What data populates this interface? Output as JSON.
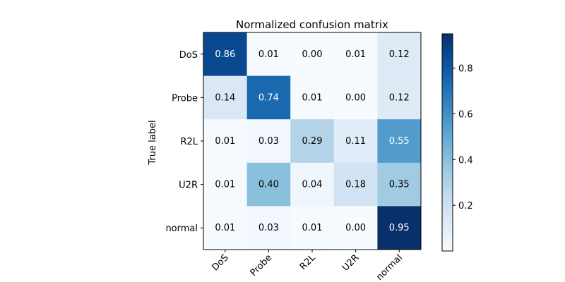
{
  "chart_data": {
    "type": "heatmap",
    "title": "Normalized confusion matrix",
    "ylabel": "True label",
    "xlabel": "",
    "row_labels": [
      "DoS",
      "Probe",
      "R2L",
      "U2R",
      "normal"
    ],
    "col_labels": [
      "DoS",
      "Probe",
      "R2L",
      "U2R",
      "normal"
    ],
    "values": [
      [
        0.86,
        0.01,
        0.0,
        0.01,
        0.12
      ],
      [
        0.14,
        0.74,
        0.01,
        0.0,
        0.12
      ],
      [
        0.01,
        0.03,
        0.29,
        0.11,
        0.55
      ],
      [
        0.01,
        0.4,
        0.04,
        0.18,
        0.35
      ],
      [
        0.01,
        0.03,
        0.01,
        0.0,
        0.95
      ]
    ],
    "colorscale": "Blues",
    "vmin": 0.0,
    "vmax": 0.95,
    "colorbar_ticks": [
      0.2,
      0.4,
      0.6,
      0.8
    ],
    "colorbar_tick_labels": [
      "0.2",
      "0.4",
      "0.6",
      "0.8"
    ],
    "x_tick_rotation": "45deg"
  }
}
